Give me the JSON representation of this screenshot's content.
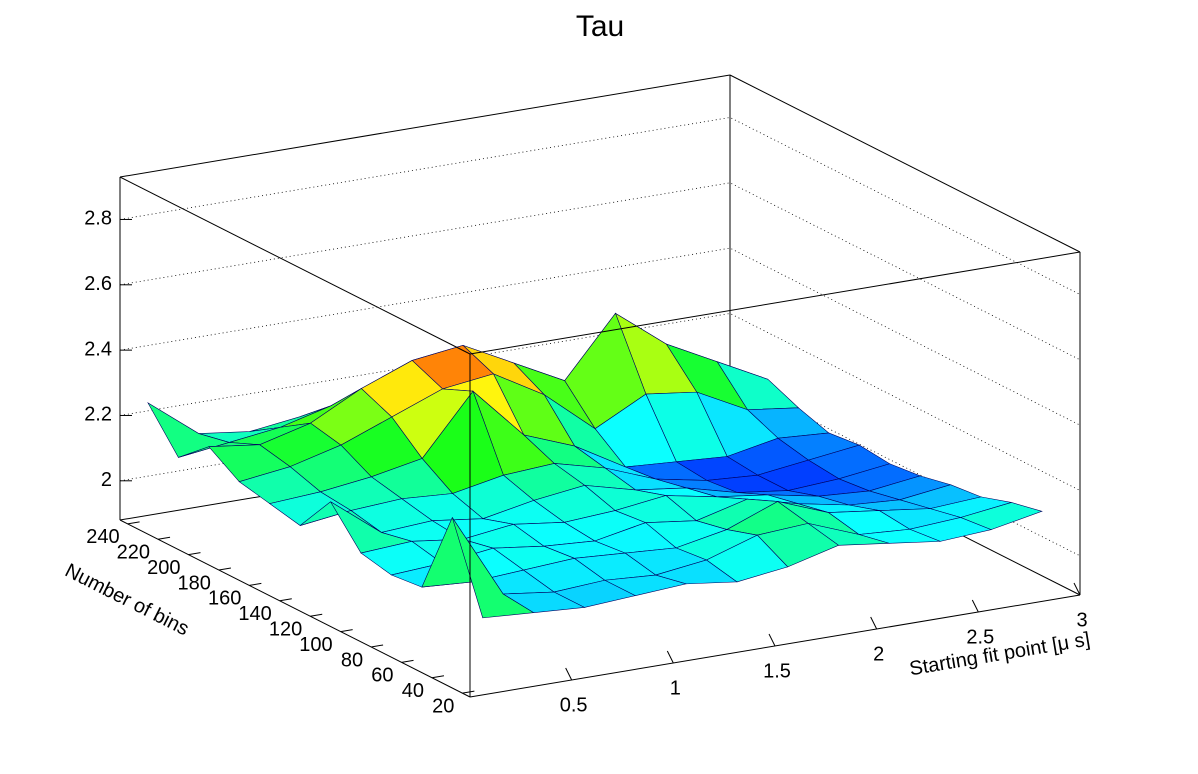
{
  "chart_data": {
    "type": "surface",
    "title": "Tau",
    "x_label": "Starting fit point [μ s]",
    "y_label": "Number of bins",
    "x": [
      0.1,
      0.35,
      0.6,
      0.85,
      1.1,
      1.35,
      1.6,
      1.85,
      2.1,
      2.35,
      2.6,
      2.85
    ],
    "y": [
      20,
      40,
      60,
      80,
      100,
      120,
      140,
      160,
      180,
      200,
      220,
      240
    ],
    "z": [
      [
        2.1,
        2.09,
        2.08,
        2.09,
        2.1,
        2.08,
        2.1,
        2.14,
        2.12,
        2.1,
        2.11,
        2.14
      ],
      [
        2.36,
        2.1,
        2.08,
        2.09,
        2.08,
        2.1,
        2.15,
        2.16,
        2.1,
        2.09,
        2.1,
        2.12
      ],
      [
        2.1,
        2.09,
        2.1,
        2.11,
        2.1,
        2.09,
        2.12,
        2.18,
        2.12,
        2.1,
        2.08,
        2.09
      ],
      [
        2.09,
        2.1,
        2.12,
        2.1,
        2.09,
        2.12,
        2.1,
        2.14,
        2.1,
        2.07,
        2.06,
        2.08
      ],
      [
        2.11,
        2.12,
        2.1,
        2.12,
        2.1,
        2.11,
        2.13,
        2.1,
        2.08,
        2.05,
        2.04,
        2.06
      ],
      [
        2.22,
        2.1,
        2.11,
        2.09,
        2.12,
        2.14,
        2.1,
        2.08,
        2.04,
        2.02,
        2.03,
        2.05
      ],
      [
        2.1,
        2.12,
        2.13,
        2.12,
        2.15,
        2.16,
        2.12,
        2.06,
        2.03,
        2.02,
        2.04,
        2.06
      ],
      [
        2.12,
        2.13,
        2.15,
        2.18,
        2.36,
        2.2,
        2.14,
        2.05,
        2.04,
        2.03,
        2.06,
        2.05
      ],
      [
        2.14,
        2.16,
        2.2,
        2.26,
        2.32,
        2.34,
        2.25,
        2.12,
        2.2,
        2.18,
        2.1,
        2.08
      ],
      [
        2.2,
        2.18,
        2.22,
        2.3,
        2.36,
        2.38,
        2.3,
        2.22,
        2.4,
        2.28,
        2.2,
        2.12
      ],
      [
        2.12,
        2.14,
        2.16,
        2.2,
        2.22,
        2.24,
        2.18,
        2.1,
        2.16,
        2.12,
        2.08,
        2.06
      ],
      [
        2.24,
        2.12,
        2.1,
        2.12,
        2.14,
        2.12,
        2.08,
        2.04,
        2.06,
        2.05,
        2.04,
        2.05
      ]
    ],
    "xlim": [
      0,
      3
    ],
    "ylim": [
      15,
      245
    ],
    "zlim": [
      1.88,
      2.93
    ],
    "xticks": [
      0.5,
      1,
      1.5,
      2,
      2.5,
      3
    ],
    "yticks": [
      20,
      40,
      60,
      80,
      100,
      120,
      140,
      160,
      180,
      200,
      220,
      240
    ],
    "zticks": [
      2,
      2.2,
      2.4,
      2.6,
      2.8
    ],
    "grid": true
  }
}
